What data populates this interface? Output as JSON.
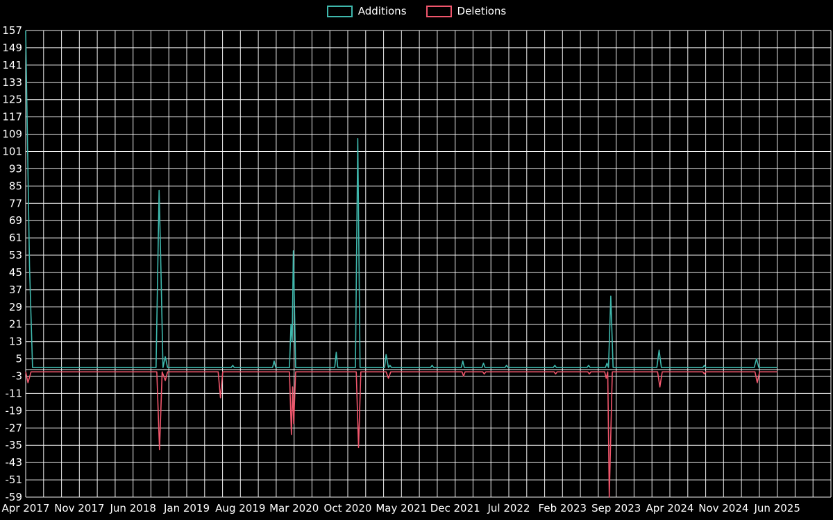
{
  "chart_data": {
    "type": "line",
    "title": "",
    "legend_position": "top-center",
    "background_color": "#000000",
    "text_color": "#ffffff",
    "grid": {
      "show": true,
      "color": "#ffffff",
      "v_step_months": 2.3333333
    },
    "x_axis": {
      "unit": "months since Apr 2017",
      "range": [
        0,
        105
      ],
      "label_every_months": 7
    },
    "x_ticks": [
      {
        "label": "Apr 2017",
        "m": 0
      },
      {
        "label": "Nov 2017",
        "m": 7
      },
      {
        "label": "Jun 2018",
        "m": 14
      },
      {
        "label": "Jan 2019",
        "m": 21
      },
      {
        "label": "Aug 2019",
        "m": 28
      },
      {
        "label": "Mar 2020",
        "m": 35
      },
      {
        "label": "Oct 2020",
        "m": 42
      },
      {
        "label": "May 2021",
        "m": 49
      },
      {
        "label": "Dec 2021",
        "m": 56
      },
      {
        "label": "Jul 2022",
        "m": 63
      },
      {
        "label": "Feb 2023",
        "m": 70
      },
      {
        "label": "Sep 2023",
        "m": 77
      },
      {
        "label": "Apr 2024",
        "m": 84
      },
      {
        "label": "Nov 2024",
        "m": 91
      },
      {
        "label": "Jun 2025",
        "m": 98
      }
    ],
    "y_axis": {
      "max": 157,
      "min": -59,
      "step": 8,
      "ticks": [
        157,
        149,
        141,
        133,
        125,
        117,
        109,
        101,
        93,
        85,
        77,
        69,
        61,
        53,
        45,
        37,
        29,
        21,
        13,
        5,
        -3,
        -11,
        -19,
        -27,
        -35,
        -43,
        -51,
        -59
      ]
    },
    "series": [
      {
        "name": "Additions",
        "color": "#3fb8ad",
        "points": [
          [
            0,
            157
          ],
          [
            0.5,
            48
          ],
          [
            0.9,
            1
          ],
          [
            17.0,
            1
          ],
          [
            17.4,
            83
          ],
          [
            17.6,
            53
          ],
          [
            17.9,
            1
          ],
          [
            18.2,
            6
          ],
          [
            18.5,
            1
          ],
          [
            26.8,
            1
          ],
          [
            27.0,
            2
          ],
          [
            27.2,
            1
          ],
          [
            32.2,
            1
          ],
          [
            32.4,
            4
          ],
          [
            32.6,
            1
          ],
          [
            34.4,
            1
          ],
          [
            34.6,
            21
          ],
          [
            34.75,
            13
          ],
          [
            34.9,
            55
          ],
          [
            35.2,
            1
          ],
          [
            40.3,
            1
          ],
          [
            40.5,
            8
          ],
          [
            40.7,
            1
          ],
          [
            43.0,
            1
          ],
          [
            43.3,
            107
          ],
          [
            43.6,
            1
          ],
          [
            46.8,
            1
          ],
          [
            47.0,
            7
          ],
          [
            47.3,
            1
          ],
          [
            47.5,
            2
          ],
          [
            47.7,
            1
          ],
          [
            52.8,
            1
          ],
          [
            53.0,
            2
          ],
          [
            53.2,
            1
          ],
          [
            56.8,
            1
          ],
          [
            57.0,
            4
          ],
          [
            57.2,
            1
          ],
          [
            59.5,
            1
          ],
          [
            59.7,
            3
          ],
          [
            59.9,
            1
          ],
          [
            62.5,
            1
          ],
          [
            62.7,
            2
          ],
          [
            62.9,
            1
          ],
          [
            68.8,
            1
          ],
          [
            69.0,
            2
          ],
          [
            69.2,
            1
          ],
          [
            73.2,
            1
          ],
          [
            73.4,
            2
          ],
          [
            73.6,
            1
          ],
          [
            75.6,
            1
          ],
          [
            75.8,
            3
          ],
          [
            76.0,
            1
          ],
          [
            76.3,
            34
          ],
          [
            76.6,
            1
          ],
          [
            82.3,
            1
          ],
          [
            82.6,
            9
          ],
          [
            82.9,
            1
          ],
          [
            88.3,
            1
          ],
          [
            88.5,
            2
          ],
          [
            88.7,
            1
          ],
          [
            95.0,
            1
          ],
          [
            95.3,
            5
          ],
          [
            95.6,
            1
          ],
          [
            98,
            1
          ]
        ]
      },
      {
        "name": "Deletions",
        "color": "#f0566c",
        "points": [
          [
            0,
            -1
          ],
          [
            0.3,
            -6
          ],
          [
            0.7,
            -1
          ],
          [
            17.1,
            -1
          ],
          [
            17.45,
            -37
          ],
          [
            17.8,
            -1
          ],
          [
            18.2,
            -5
          ],
          [
            18.5,
            -1
          ],
          [
            25.1,
            -1
          ],
          [
            25.4,
            -13
          ],
          [
            25.7,
            -1
          ],
          [
            34.4,
            -1
          ],
          [
            34.65,
            -30
          ],
          [
            34.8,
            -8
          ],
          [
            34.95,
            -25
          ],
          [
            35.2,
            -1
          ],
          [
            43.1,
            -1
          ],
          [
            43.4,
            -36
          ],
          [
            43.7,
            -1
          ],
          [
            47.0,
            -1
          ],
          [
            47.3,
            -4
          ],
          [
            47.6,
            -1
          ],
          [
            56.9,
            -1
          ],
          [
            57.1,
            -3
          ],
          [
            57.3,
            -1
          ],
          [
            59.6,
            -1
          ],
          [
            59.8,
            -2
          ],
          [
            60.0,
            -1
          ],
          [
            68.9,
            -1
          ],
          [
            69.1,
            -2
          ],
          [
            69.3,
            -1
          ],
          [
            73.3,
            -1
          ],
          [
            73.5,
            -2
          ],
          [
            73.7,
            -1
          ],
          [
            75.5,
            -1
          ],
          [
            75.7,
            -4
          ],
          [
            75.9,
            -1
          ],
          [
            76.1,
            -59
          ],
          [
            76.5,
            -1
          ],
          [
            82.4,
            -1
          ],
          [
            82.7,
            -8
          ],
          [
            83.0,
            -1
          ],
          [
            88.3,
            -1
          ],
          [
            88.5,
            -2
          ],
          [
            88.7,
            -1
          ],
          [
            95.1,
            -1
          ],
          [
            95.4,
            -6
          ],
          [
            95.7,
            -1
          ],
          [
            98,
            -1
          ]
        ]
      }
    ]
  }
}
